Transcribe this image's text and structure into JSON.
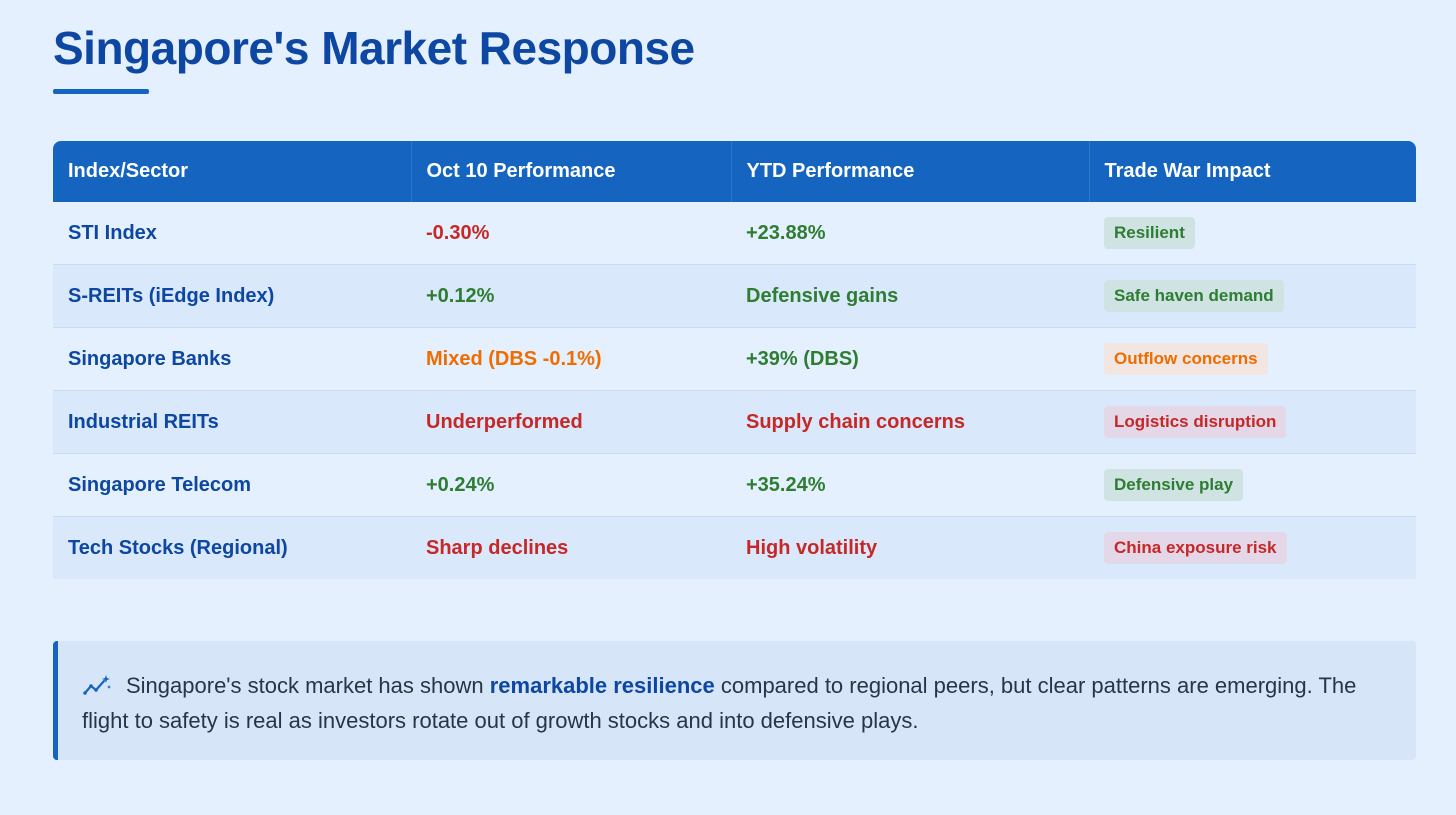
{
  "page": {
    "title": "Singapore's Market Response"
  },
  "table": {
    "headers": [
      "Index/Sector",
      "Oct 10 Performance",
      "YTD Performance",
      "Trade War Impact"
    ],
    "rows": [
      {
        "sector": "STI Index",
        "oct10": "-0.30%",
        "ytd": "+23.88%",
        "impact": "Resilient"
      },
      {
        "sector": "S-REITs (iEdge Index)",
        "oct10": "+0.12%",
        "ytd": "Defensive gains",
        "impact": "Safe haven demand"
      },
      {
        "sector": "Singapore Banks",
        "oct10": "Mixed (DBS -0.1%)",
        "ytd": "+39% (DBS)",
        "impact": "Outflow concerns"
      },
      {
        "sector": "Industrial REITs",
        "oct10": "Underperformed",
        "ytd": "Supply chain concerns",
        "impact": "Logistics disruption"
      },
      {
        "sector": "Singapore Telecom",
        "oct10": "+0.24%",
        "ytd": "+35.24%",
        "impact": "Defensive play"
      },
      {
        "sector": "Tech Stocks (Regional)",
        "oct10": "Sharp declines",
        "ytd": "High volatility",
        "impact": "China exposure risk"
      }
    ]
  },
  "note": {
    "icon": "trend-sparkle-icon",
    "before": "Singapore's stock market has shown ",
    "highlight": "remarkable resilience",
    "after": " compared to regional peers, but clear patterns are emerging. The flight to safety is real as investors rotate out of growth stocks and into defensive plays."
  },
  "colors": {
    "primary": "#1565c0",
    "title": "#0d47a1",
    "positive": "#2e7d32",
    "negative": "#c62828",
    "mixed": "#ef6c00",
    "background": "#e4f0fd"
  }
}
